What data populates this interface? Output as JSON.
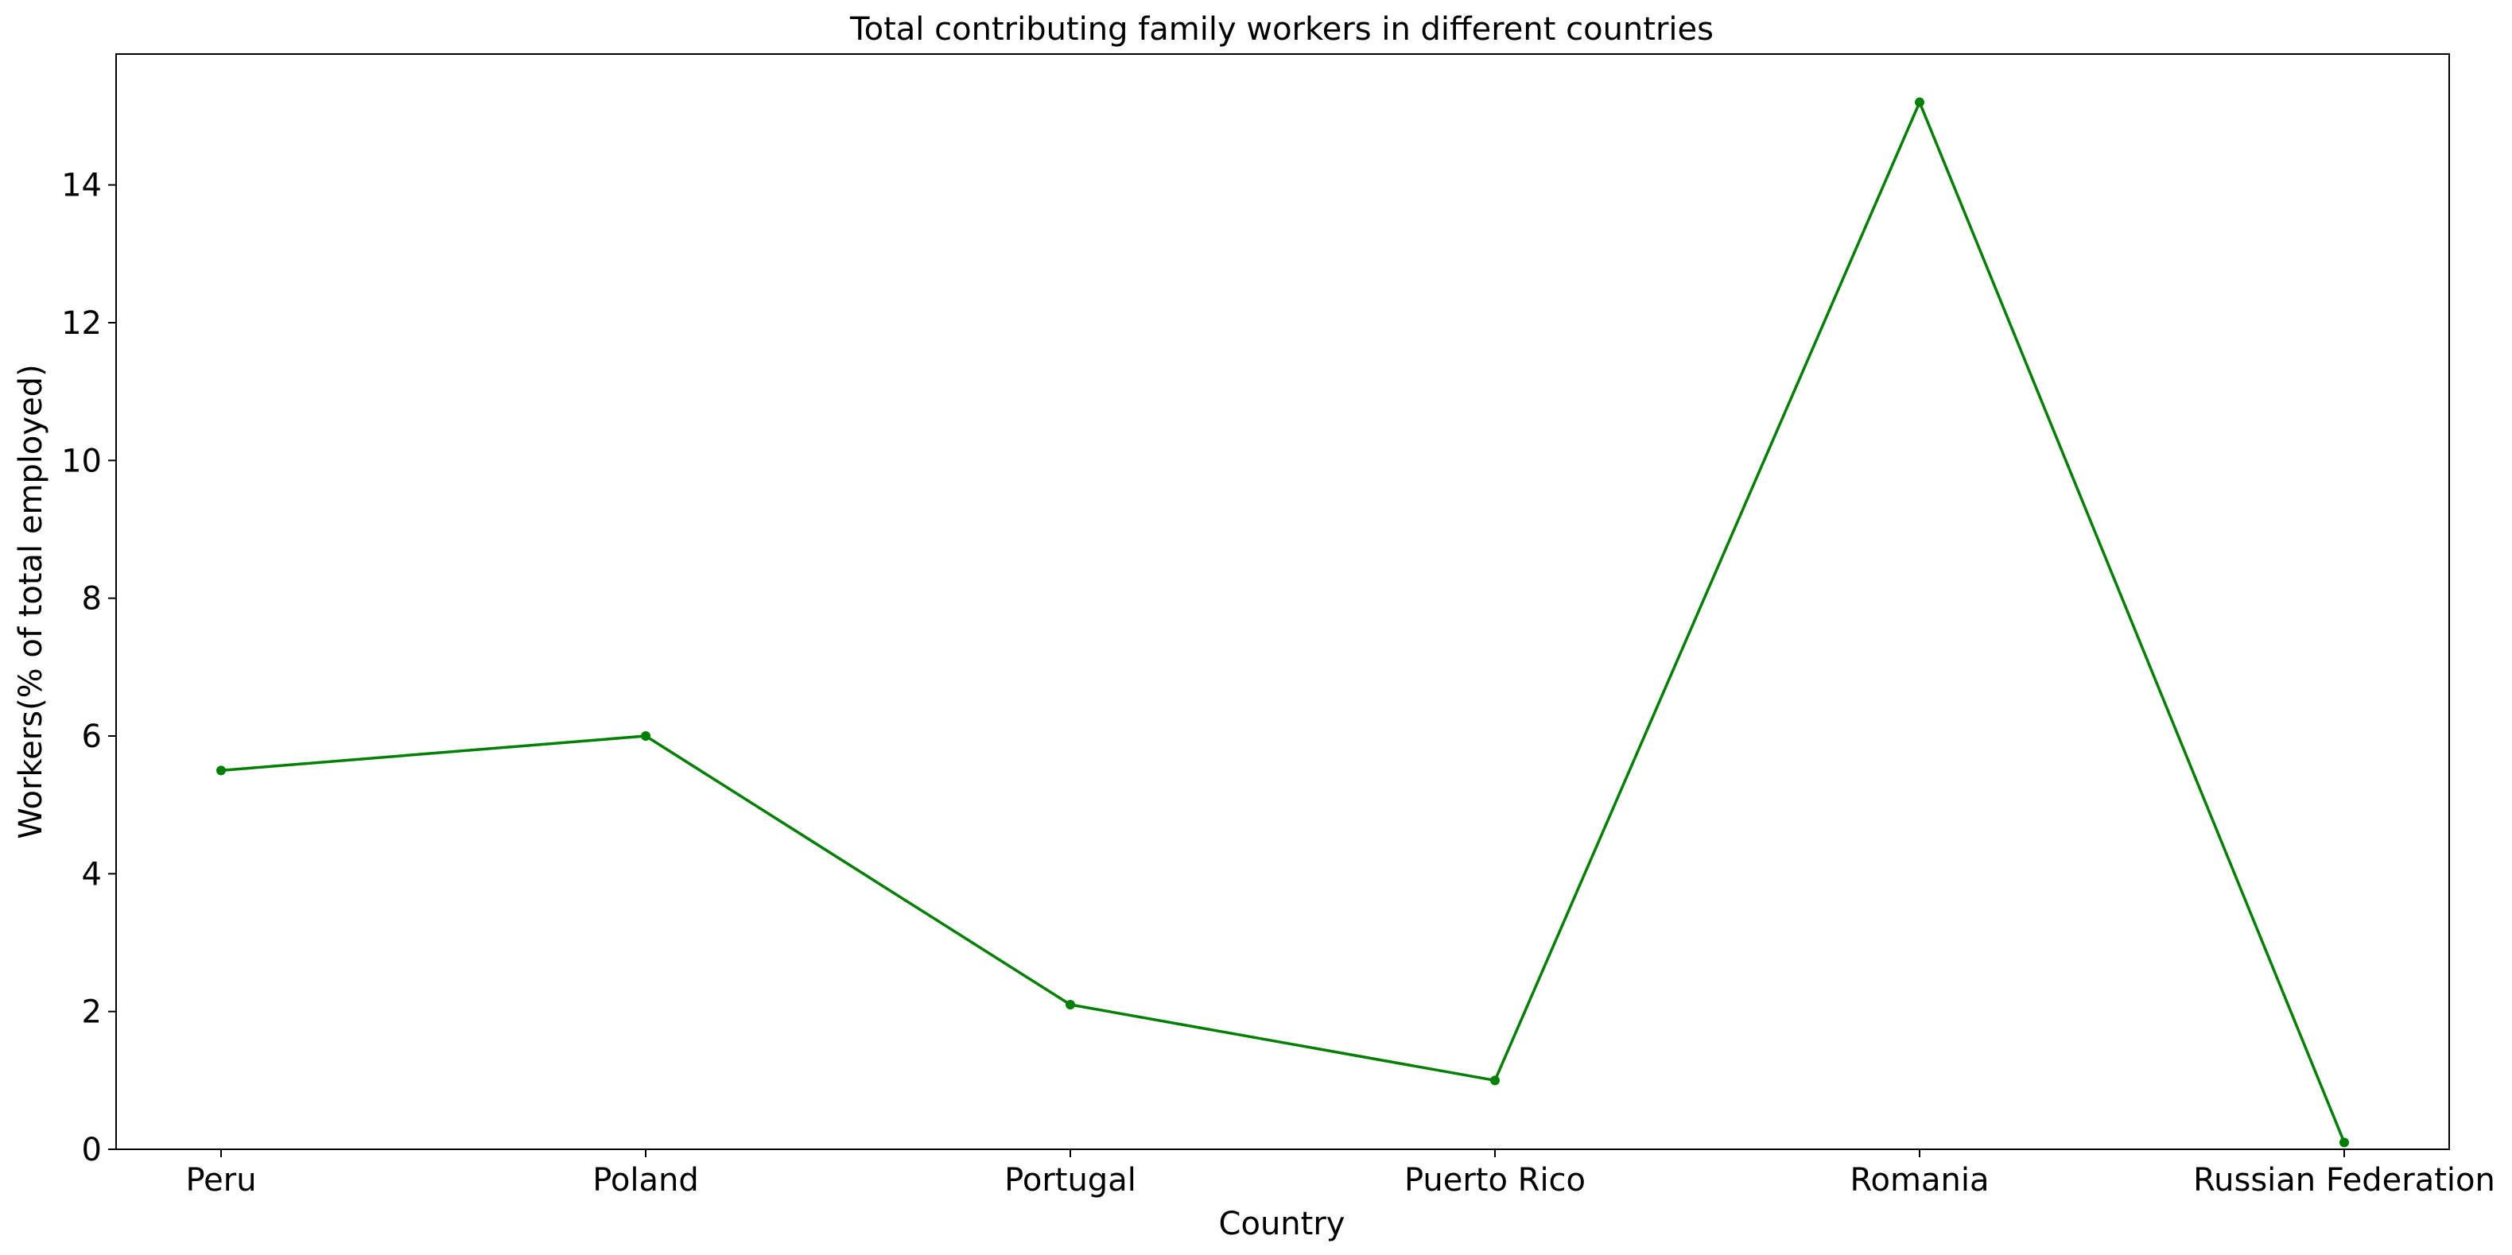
{
  "chart_data": {
    "type": "line",
    "title": "Total contributing family workers in different countries",
    "xlabel": "Country",
    "ylabel": "Workers(% of total employed)",
    "categories": [
      "Peru",
      "Poland",
      "Portugal",
      "Puerto Rico",
      "Romania",
      "Russian Federation"
    ],
    "series": [
      {
        "values": [
          5.5,
          6.0,
          2.1,
          1.0,
          15.2,
          0.1
        ],
        "color": "#008000",
        "marker": "circle"
      }
    ],
    "ylim": [
      0,
      15.9
    ],
    "yticks": [
      0,
      2,
      4,
      6,
      8,
      10,
      12,
      14
    ],
    "grid": false,
    "legend": "none"
  }
}
